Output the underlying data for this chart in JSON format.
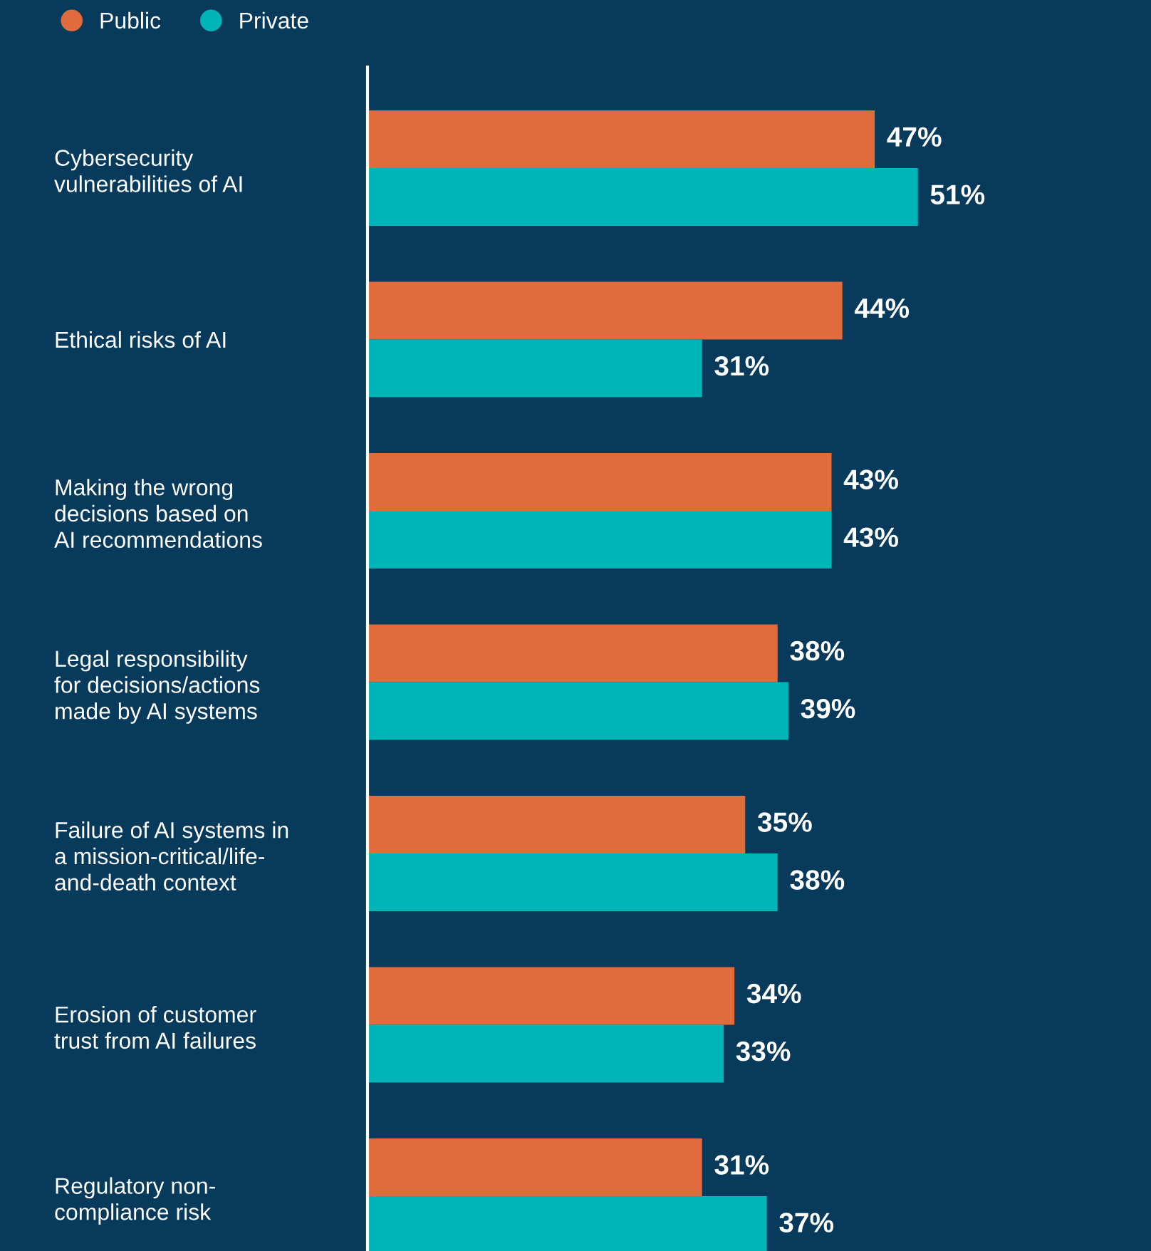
{
  "chart_data": {
    "type": "bar",
    "orientation": "horizontal",
    "categories": [
      "Cybersecurity\nvulnerabilities of AI",
      "Ethical risks of AI",
      "Making the wrong\ndecisions based on\nAI recommendations",
      "Legal responsibility\nfor decisions/actions\nmade by AI systems",
      "Failure of AI systems in\na mission-critical/life-\nand-death context",
      "Erosion of customer\ntrust from AI failures",
      "Regulatory non-\ncompliance risk"
    ],
    "series": [
      {
        "name": "Public",
        "color": "#e06b3c",
        "values": [
          47,
          44,
          43,
          38,
          35,
          34,
          31
        ],
        "value_labels": [
          "47%",
          "44%",
          "43%",
          "38%",
          "35%",
          "34%",
          "31%"
        ]
      },
      {
        "name": "Private",
        "color": "#00b5b8",
        "values": [
          51,
          31,
          43,
          39,
          38,
          33,
          37
        ],
        "value_labels": [
          "51%",
          "31%",
          "43%",
          "39%",
          "38%",
          "33%",
          "37%"
        ]
      }
    ],
    "xlim": [
      0,
      72.6
    ],
    "tick_labels": "y",
    "legend": "top left",
    "grid": false
  }
}
